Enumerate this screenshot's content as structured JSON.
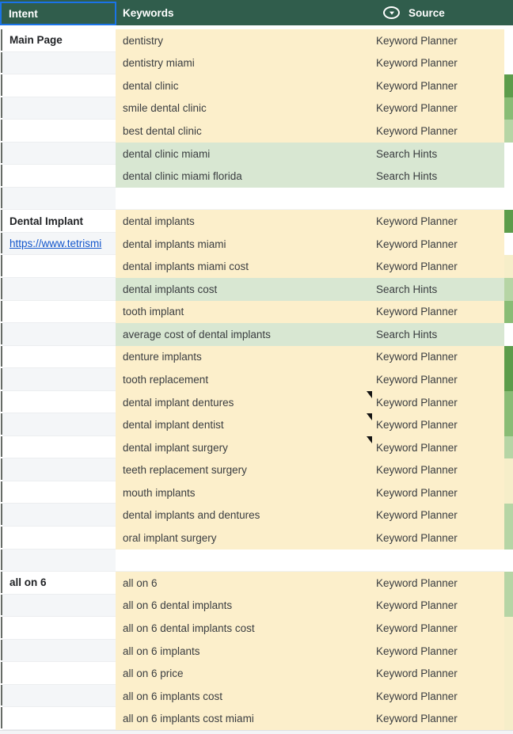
{
  "header": {
    "intent_label": "Intent",
    "keywords_label": "Keywords",
    "source_label": "Source",
    "source_icon": "filter-dropdown-icon"
  },
  "colors": {
    "header_bg": "#305D4C",
    "selection_border": "#1A73E8",
    "row_yellow": "#FCEFCB",
    "row_green": "#D8E7D2",
    "edge_dark": "#5C9C4B",
    "edge_medium": "#89BC75",
    "edge_light": "#B6D5A5",
    "edge_pale": "#F6EEC9",
    "link": "#1155CC"
  },
  "table": {
    "rows": [
      {
        "intent": "Main Page",
        "style": "bold",
        "keyword": "dentistry",
        "source": "Keyword Planner",
        "bg": "yellow",
        "edge": "none",
        "note": false
      },
      {
        "intent": "",
        "style": "",
        "keyword": "dentistry miami",
        "source": "Keyword Planner",
        "bg": "yellow",
        "edge": "none",
        "note": false
      },
      {
        "intent": "",
        "style": "",
        "keyword": "dental clinic",
        "source": "Keyword Planner",
        "bg": "yellow",
        "edge": "dark",
        "note": false
      },
      {
        "intent": "",
        "style": "",
        "keyword": "smile dental clinic",
        "source": "Keyword Planner",
        "bg": "yellow",
        "edge": "medium",
        "note": false
      },
      {
        "intent": "",
        "style": "",
        "keyword": "best dental clinic",
        "source": "Keyword Planner",
        "bg": "yellow",
        "edge": "light",
        "note": false
      },
      {
        "intent": "",
        "style": "",
        "keyword": "dental clinic miami",
        "source": "Search Hints",
        "bg": "green",
        "edge": "none",
        "note": false
      },
      {
        "intent": "",
        "style": "",
        "keyword": "dental clinic miami florida",
        "source": "Search Hints",
        "bg": "green",
        "edge": "none",
        "note": false
      },
      {
        "intent": "",
        "style": "",
        "keyword": "",
        "source": "",
        "bg": "blank",
        "edge": "none",
        "note": false
      },
      {
        "intent": "Dental Implant",
        "style": "bold",
        "keyword": "dental implants",
        "source": "Keyword Planner",
        "bg": "yellow",
        "edge": "dark",
        "note": false
      },
      {
        "intent": "https://www.tetrismi",
        "style": "link",
        "keyword": "dental implants miami",
        "source": "Keyword Planner",
        "bg": "yellow",
        "edge": "none",
        "note": false
      },
      {
        "intent": "",
        "style": "",
        "keyword": "dental implants miami cost",
        "source": "Keyword Planner",
        "bg": "yellow",
        "edge": "pale",
        "note": false
      },
      {
        "intent": "",
        "style": "",
        "keyword": "dental implants cost",
        "source": "Search Hints",
        "bg": "green",
        "edge": "light",
        "note": false
      },
      {
        "intent": "",
        "style": "",
        "keyword": "tooth implant",
        "source": "Keyword Planner",
        "bg": "yellow",
        "edge": "medium",
        "note": false
      },
      {
        "intent": "",
        "style": "",
        "keyword": "average cost of dental implants",
        "source": "Search Hints",
        "bg": "green",
        "edge": "none",
        "note": false
      },
      {
        "intent": "",
        "style": "",
        "keyword": "denture implants",
        "source": "Keyword Planner",
        "bg": "yellow",
        "edge": "dark",
        "note": false
      },
      {
        "intent": "",
        "style": "",
        "keyword": "tooth replacement",
        "source": "Keyword Planner",
        "bg": "yellow",
        "edge": "dark",
        "note": false
      },
      {
        "intent": "",
        "style": "",
        "keyword": "dental implant dentures",
        "source": "Keyword Planner",
        "bg": "yellow",
        "edge": "medium",
        "note": true
      },
      {
        "intent": "",
        "style": "",
        "keyword": "dental implant dentist",
        "source": "Keyword Planner",
        "bg": "yellow",
        "edge": "medium",
        "note": true
      },
      {
        "intent": "",
        "style": "",
        "keyword": "dental implant surgery",
        "source": "Keyword Planner",
        "bg": "yellow",
        "edge": "light",
        "note": true
      },
      {
        "intent": "",
        "style": "",
        "keyword": "teeth replacement surgery",
        "source": "Keyword Planner",
        "bg": "yellow",
        "edge": "pale",
        "note": false
      },
      {
        "intent": "",
        "style": "",
        "keyword": "mouth implants",
        "source": "Keyword Planner",
        "bg": "yellow",
        "edge": "pale",
        "note": false
      },
      {
        "intent": "",
        "style": "",
        "keyword": "dental implants and dentures",
        "source": "Keyword Planner",
        "bg": "yellow",
        "edge": "light",
        "note": false
      },
      {
        "intent": "",
        "style": "",
        "keyword": "oral implant surgery",
        "source": "Keyword Planner",
        "bg": "yellow",
        "edge": "light",
        "note": false
      },
      {
        "intent": "",
        "style": "",
        "keyword": "",
        "source": "",
        "bg": "blank",
        "edge": "none",
        "note": false
      },
      {
        "intent": "all on 6",
        "style": "bold",
        "keyword": "all on 6",
        "source": "Keyword Planner",
        "bg": "yellow",
        "edge": "light",
        "note": false
      },
      {
        "intent": "",
        "style": "",
        "keyword": "all on 6 dental implants",
        "source": "Keyword Planner",
        "bg": "yellow",
        "edge": "light",
        "note": false
      },
      {
        "intent": "",
        "style": "",
        "keyword": "all on 6 dental implants cost",
        "source": "Keyword Planner",
        "bg": "yellow",
        "edge": "pale",
        "note": false
      },
      {
        "intent": "",
        "style": "",
        "keyword": "all on 6 implants",
        "source": "Keyword Planner",
        "bg": "yellow",
        "edge": "pale",
        "note": false
      },
      {
        "intent": "",
        "style": "",
        "keyword": "all on 6 price",
        "source": "Keyword Planner",
        "bg": "yellow",
        "edge": "pale",
        "note": false
      },
      {
        "intent": "",
        "style": "",
        "keyword": "all on 6 implants cost",
        "source": "Keyword Planner",
        "bg": "yellow",
        "edge": "pale",
        "note": false
      },
      {
        "intent": "",
        "style": "",
        "keyword": "all on 6 implants cost miami",
        "source": "Keyword Planner",
        "bg": "yellow",
        "edge": "pale",
        "note": false
      }
    ]
  }
}
